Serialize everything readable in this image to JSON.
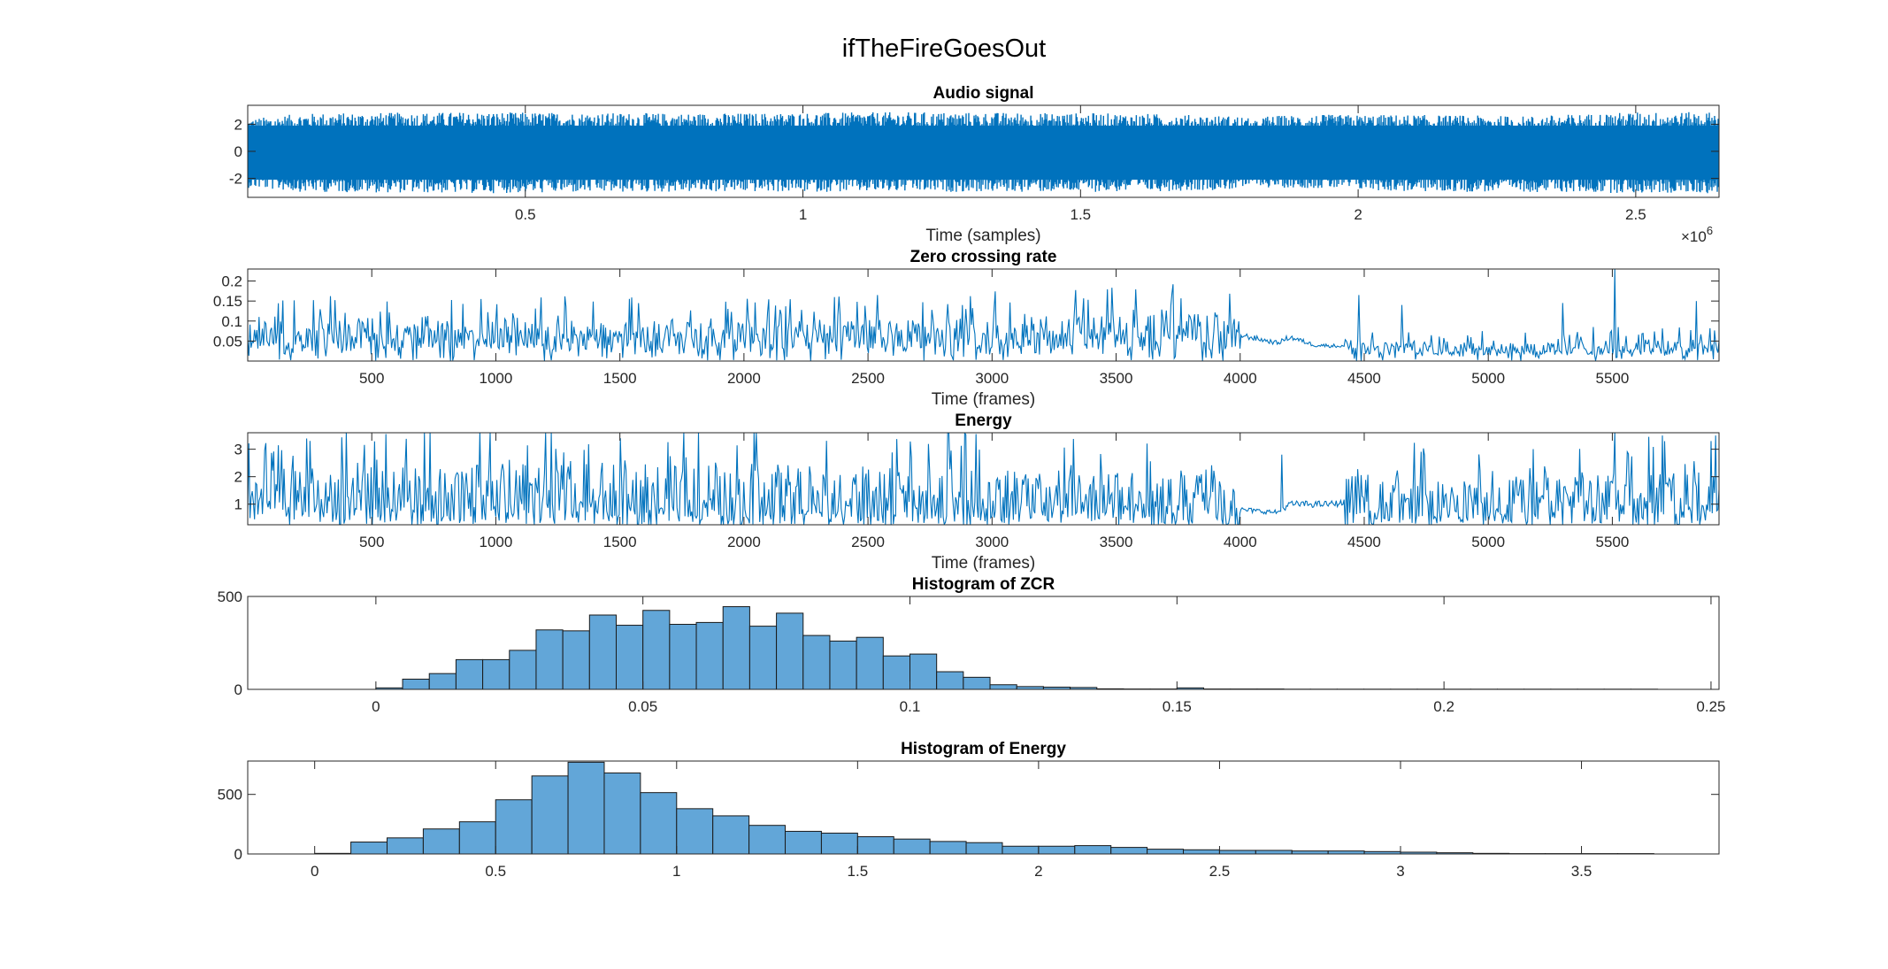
{
  "figure_title": "ifTheFireGoesOut",
  "colors": {
    "line": "#0072BD",
    "bar_fill": "#62A6D8",
    "bar_edge": "#1A1A1A",
    "axis": "#262626"
  },
  "chart_data": [
    {
      "id": "audio",
      "type": "line",
      "title": "Audio signal",
      "xlabel": "Time (samples)",
      "ylabel": "",
      "xlim": [
        0,
        2650000
      ],
      "ylim": [
        -3.4,
        3.4
      ],
      "x_exponent_label": "×10",
      "x_exponent": "6",
      "xticks": [
        500000,
        1000000,
        1500000,
        2000000,
        2500000
      ],
      "xtick_labels": [
        "0.5",
        "1",
        "1.5",
        "2",
        "2.5"
      ],
      "yticks": [
        -2,
        0,
        2
      ],
      "ytick_labels": [
        "-2",
        "0",
        "2"
      ],
      "envelope": {
        "description_points_x": [
          0,
          100000,
          400000,
          800000,
          1200000,
          1600000,
          1790000,
          1820000,
          1830000,
          1900000,
          2100000,
          2300000,
          2500000,
          2650000
        ],
        "upper": [
          2.4,
          2.8,
          2.9,
          2.8,
          2.9,
          2.8,
          2.6,
          2.2,
          2.6,
          2.7,
          2.7,
          2.6,
          2.9,
          2.9
        ],
        "lower": [
          -2.7,
          -3.0,
          -3.1,
          -3.0,
          -3.0,
          -3.0,
          -2.8,
          -2.4,
          -2.7,
          -2.7,
          -3.0,
          -3.0,
          -3.1,
          -3.1
        ]
      }
    },
    {
      "id": "zcr",
      "type": "line",
      "title": "Zero crossing rate",
      "xlabel": "Time (frames)",
      "ylabel": "",
      "xlim": [
        0,
        5930
      ],
      "ylim": [
        0,
        0.23
      ],
      "xticks": [
        500,
        1000,
        1500,
        2000,
        2500,
        3000,
        3500,
        4000,
        4500,
        5000,
        5500
      ],
      "xtick_labels": [
        "500",
        "1000",
        "1500",
        "2000",
        "2500",
        "3000",
        "3500",
        "4000",
        "4500",
        "5000",
        "5500"
      ],
      "yticks": [
        0.05,
        0.1,
        0.15,
        0.2
      ],
      "ytick_labels": [
        "0.05",
        "0.1",
        "0.15",
        "0.2"
      ],
      "profile_x": [
        0,
        1000,
        2000,
        3000,
        3900,
        4000,
        4150,
        4200,
        4300,
        4500,
        5000,
        5500,
        5930
      ],
      "profile_mean": [
        0.065,
        0.065,
        0.065,
        0.07,
        0.08,
        0.065,
        0.045,
        0.06,
        0.04,
        0.035,
        0.03,
        0.035,
        0.035
      ],
      "peaks": [
        [
          940,
          0.155
        ],
        [
          2880,
          0.14
        ],
        [
          4480,
          0.165
        ],
        [
          4650,
          0.14
        ],
        [
          5300,
          0.145
        ],
        [
          5510,
          0.23
        ],
        [
          5840,
          0.15
        ]
      ]
    },
    {
      "id": "energy",
      "type": "line",
      "title": "Energy",
      "xlabel": "Time (frames)",
      "ylabel": "",
      "xlim": [
        0,
        5930
      ],
      "ylim": [
        0.25,
        3.6
      ],
      "xticks": [
        500,
        1000,
        1500,
        2000,
        2500,
        3000,
        3500,
        4000,
        4500,
        5000,
        5500
      ],
      "xtick_labels": [
        "500",
        "1000",
        "1500",
        "2000",
        "2500",
        "3000",
        "3500",
        "4000",
        "4500",
        "5000",
        "5500"
      ],
      "yticks": [
        1,
        2,
        3
      ],
      "ytick_labels": [
        "1",
        "2",
        "3"
      ],
      "profile_x": [
        0,
        1000,
        2000,
        3000,
        3900,
        4000,
        4150,
        4200,
        4350,
        4500,
        5000,
        5500,
        5930
      ],
      "profile_mean": [
        1.2,
        1.3,
        1.3,
        1.2,
        1.1,
        0.8,
        0.7,
        1.0,
        1.0,
        1.1,
        1.0,
        1.1,
        1.2
      ],
      "peaks": [
        [
          4170,
          2.8
        ],
        [
          5510,
          3.6
        ],
        [
          5700,
          3.5
        ],
        [
          1500,
          3.4
        ],
        [
          250,
          3.3
        ]
      ]
    },
    {
      "id": "hist_zcr",
      "type": "bar",
      "title": "Histogram of ZCR",
      "xlabel": "",
      "ylabel": "",
      "xlim": [
        -0.024,
        0.2515
      ],
      "ylim": [
        0,
        500
      ],
      "bin_width": 0.005,
      "bin_start": 0,
      "values": [
        8,
        55,
        85,
        160,
        160,
        210,
        320,
        315,
        400,
        345,
        425,
        350,
        360,
        445,
        340,
        410,
        290,
        260,
        280,
        180,
        190,
        95,
        65,
        25,
        15,
        12,
        10,
        3,
        2,
        2,
        8,
        2,
        2,
        2,
        1,
        1,
        1,
        1,
        1,
        1,
        1,
        1,
        1,
        1,
        1,
        1,
        1,
        1
      ],
      "xticks": [
        0,
        0.05,
        0.1,
        0.15,
        0.2,
        0.25
      ],
      "xtick_labels": [
        "0",
        "0.05",
        "0.1",
        "0.15",
        "0.2",
        "0.25"
      ],
      "yticks": [
        0,
        500
      ],
      "ytick_labels": [
        "0",
        "500"
      ]
    },
    {
      "id": "hist_energy",
      "type": "bar",
      "title": "Histogram of Energy",
      "xlabel": "",
      "ylabel": "",
      "xlim": [
        -0.185,
        3.88
      ],
      "ylim": [
        0,
        780
      ],
      "bin_width": 0.1,
      "bin_start": 0,
      "values": [
        5,
        100,
        135,
        210,
        270,
        455,
        655,
        770,
        680,
        515,
        380,
        320,
        240,
        190,
        175,
        145,
        125,
        105,
        95,
        65,
        65,
        70,
        55,
        40,
        35,
        30,
        30,
        25,
        25,
        20,
        15,
        10,
        5,
        3,
        3,
        3,
        3
      ],
      "xticks": [
        0,
        0.5,
        1,
        1.5,
        2,
        2.5,
        3,
        3.5
      ],
      "xtick_labels": [
        "0",
        "0.5",
        "1",
        "1.5",
        "2",
        "2.5",
        "3",
        "3.5"
      ],
      "yticks": [
        0,
        500
      ],
      "ytick_labels": [
        "0",
        "500"
      ]
    }
  ]
}
